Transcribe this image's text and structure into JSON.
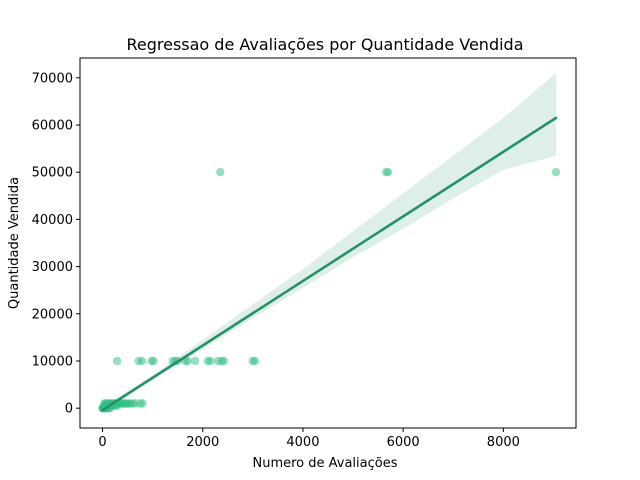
{
  "chart_data": {
    "type": "scatter",
    "title": "Regressao de Avaliações por Quantidade Vendida",
    "xlabel": "Numero de Avaliações",
    "ylabel": "Quantidade Vendida",
    "xlim": [
      -450,
      9450
    ],
    "ylim": [
      -4200,
      74200
    ],
    "xticks": [
      0,
      2000,
      4000,
      6000,
      8000
    ],
    "yticks": [
      0,
      10000,
      20000,
      30000,
      40000,
      50000,
      60000,
      70000
    ],
    "xtick_labels": [
      "0",
      "2000",
      "4000",
      "6000",
      "8000"
    ],
    "ytick_labels": [
      "0",
      "10000",
      "20000",
      "30000",
      "40000",
      "50000",
      "60000",
      "70000"
    ],
    "grid": false,
    "point_color": "#2ebf84",
    "line_color": "#239367",
    "band_color": "#239367",
    "points": [
      [
        0,
        0
      ],
      [
        5,
        0
      ],
      [
        10,
        50
      ],
      [
        15,
        0
      ],
      [
        20,
        100
      ],
      [
        25,
        50
      ],
      [
        30,
        0
      ],
      [
        40,
        100
      ],
      [
        50,
        0
      ],
      [
        60,
        50
      ],
      [
        70,
        0
      ],
      [
        80,
        100
      ],
      [
        90,
        0
      ],
      [
        100,
        50
      ],
      [
        120,
        0
      ],
      [
        150,
        0
      ],
      [
        30,
        500
      ],
      [
        50,
        500
      ],
      [
        80,
        500
      ],
      [
        100,
        500
      ],
      [
        150,
        500
      ],
      [
        200,
        500
      ],
      [
        250,
        500
      ],
      [
        300,
        500
      ],
      [
        40,
        1000
      ],
      [
        60,
        1000
      ],
      [
        90,
        1000
      ],
      [
        120,
        1000
      ],
      [
        150,
        1000
      ],
      [
        180,
        1000
      ],
      [
        210,
        1000
      ],
      [
        240,
        1000
      ],
      [
        270,
        1000
      ],
      [
        300,
        1000
      ],
      [
        330,
        1000
      ],
      [
        360,
        1000
      ],
      [
        390,
        1000
      ],
      [
        420,
        1000
      ],
      [
        450,
        1000
      ],
      [
        480,
        1000
      ],
      [
        510,
        1000
      ],
      [
        550,
        1000
      ],
      [
        600,
        1000
      ],
      [
        650,
        1000
      ],
      [
        750,
        1000
      ],
      [
        800,
        1000
      ],
      [
        290,
        10000
      ],
      [
        720,
        10000
      ],
      [
        790,
        10000
      ],
      [
        980,
        10000
      ],
      [
        1020,
        10000
      ],
      [
        1400,
        10000
      ],
      [
        1450,
        10000
      ],
      [
        1500,
        10000
      ],
      [
        1650,
        10000
      ],
      [
        1700,
        10000
      ],
      [
        1850,
        10000
      ],
      [
        2100,
        10000
      ],
      [
        2150,
        10000
      ],
      [
        2300,
        10000
      ],
      [
        2380,
        10000
      ],
      [
        2420,
        10000
      ],
      [
        3000,
        10000
      ],
      [
        3040,
        10000
      ],
      [
        2350,
        50000
      ],
      [
        5660,
        50000
      ],
      [
        5700,
        50000
      ],
      [
        9050,
        50000
      ]
    ],
    "regression": {
      "x": [
        0,
        9050
      ],
      "y": [
        -400,
        61500
      ]
    },
    "confidence_band": {
      "x": [
        0,
        500,
        1000,
        2000,
        3000,
        4000,
        5000,
        6000,
        7000,
        8000,
        9050
      ],
      "upper": [
        500,
        3600,
        7000,
        14500,
        22000,
        29500,
        37500,
        45500,
        53500,
        61500,
        71000
      ],
      "lower": [
        -900,
        2700,
        6000,
        12500,
        19000,
        25500,
        32000,
        38000,
        44500,
        50500,
        53500
      ]
    }
  }
}
